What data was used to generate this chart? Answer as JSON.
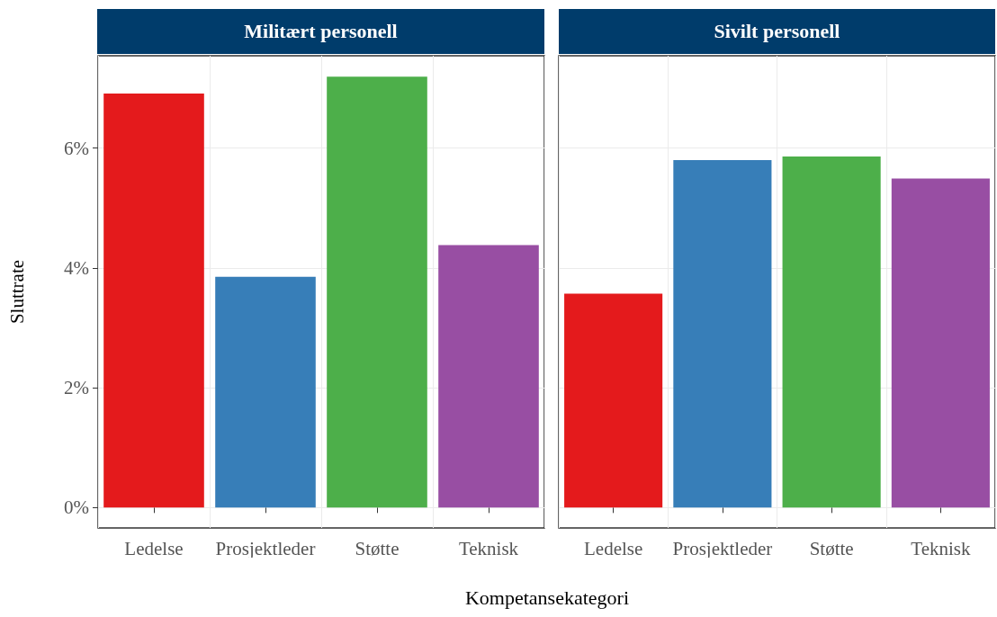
{
  "chart_data": [
    {
      "type": "bar",
      "title": "Militært personell",
      "xlabel": "Kompetansekategori",
      "ylabel": "Sluttrate",
      "categories": [
        "Ledelse",
        "Prosjektleder",
        "Støtte",
        "Teknisk"
      ],
      "values": [
        6.91,
        3.85,
        7.19,
        4.38
      ],
      "colors": [
        "#e41a1c",
        "#377eb8",
        "#4daf4a",
        "#984ea3"
      ],
      "ylim": [
        -0.34,
        7.54
      ],
      "yticks": [
        {
          "value": 0,
          "label": "0%"
        },
        {
          "value": 2,
          "label": "2%"
        },
        {
          "value": 4,
          "label": "4%"
        },
        {
          "value": 6,
          "label": "6%"
        }
      ],
      "grid": true
    },
    {
      "type": "bar",
      "title": "Sivilt personell",
      "categories": [
        "Ledelse",
        "Prosjektleder",
        "Støtte",
        "Teknisk"
      ],
      "values": [
        3.57,
        5.8,
        5.86,
        5.49
      ],
      "colors": [
        "#e41a1c",
        "#377eb8",
        "#4daf4a",
        "#984ea3"
      ],
      "ylim": [
        -0.34,
        7.54
      ],
      "yticks": [
        0,
        2,
        4,
        6
      ],
      "grid": true,
      "tick_labels": "x"
    }
  ]
}
